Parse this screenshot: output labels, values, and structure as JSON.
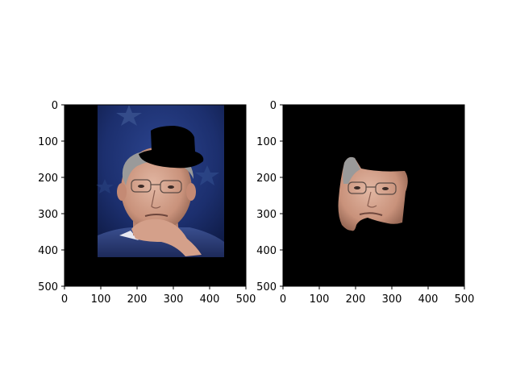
{
  "figure": {
    "background": "#ffffff",
    "axes_color": "#000000",
    "panel_background": "#000000"
  },
  "chart_data": [
    {
      "type": "image",
      "title": "",
      "xlabel": "",
      "ylabel": "",
      "xlim": [
        0,
        500
      ],
      "ylim": [
        500,
        0
      ],
      "y_inverted": true,
      "xticks": [
        0,
        100,
        200,
        300,
        400,
        500
      ],
      "yticks": [
        0,
        100,
        200,
        300,
        400,
        500
      ],
      "grid": false,
      "image_content": "photo of a man with grey hair and glasses, hand under chin, dark blue background with stars; a black hat-shaped patch covers the top of the head; black padding around the photo",
      "photo_extent": {
        "x": [
          92,
          440
        ],
        "y": [
          0,
          420
        ]
      },
      "mask_patch_color": "#000000"
    },
    {
      "type": "image",
      "title": "",
      "xlabel": "",
      "ylabel": "",
      "xlim": [
        0,
        500
      ],
      "ylim": [
        500,
        0
      ],
      "y_inverted": true,
      "xticks": [
        0,
        100,
        200,
        300,
        400,
        500
      ],
      "yticks": [
        0,
        100,
        200,
        300,
        400,
        500
      ],
      "grid": false,
      "image_content": "segmented face region of the same man on a black background",
      "face_extent": {
        "x": [
          150,
          350
        ],
        "y": [
          145,
          345
        ]
      }
    }
  ]
}
